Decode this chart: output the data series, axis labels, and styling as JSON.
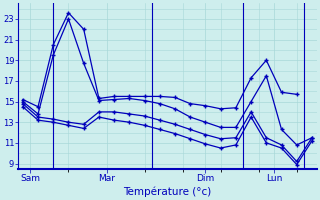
{
  "xlabel": "Température (°c)",
  "bg_color": "#ceeeed",
  "line_color": "#0000bb",
  "grid_color": "#a8d8d8",
  "ylim": [
    8.5,
    24.5
  ],
  "yticks": [
    9,
    11,
    13,
    15,
    17,
    19,
    21,
    23
  ],
  "xlim": [
    -0.3,
    19.3
  ],
  "xtick_labels": [
    "Sam",
    "Mar",
    "Dim",
    "Lun"
  ],
  "xtick_positions": [
    0.5,
    5.5,
    12.0,
    16.5
  ],
  "lines": [
    {
      "x": [
        0,
        1,
        2,
        3,
        4,
        5,
        6,
        7,
        8,
        9,
        10,
        11,
        12,
        13,
        14,
        15,
        16,
        17,
        18
      ],
      "y": [
        15.2,
        14.5,
        20.5,
        23.6,
        22.0,
        15.3,
        15.5,
        15.5,
        15.5,
        15.5,
        15.4,
        14.8,
        14.6,
        14.3,
        14.4,
        17.3,
        19.0,
        15.9,
        15.7
      ]
    },
    {
      "x": [
        0,
        1,
        2,
        3,
        4,
        5,
        6,
        7,
        8,
        9,
        10,
        11,
        12,
        13,
        14,
        15,
        16,
        17,
        18,
        19
      ],
      "y": [
        15.0,
        13.8,
        19.5,
        23.0,
        18.7,
        15.1,
        15.2,
        15.3,
        15.1,
        14.8,
        14.3,
        13.5,
        13.0,
        12.5,
        12.5,
        15.0,
        17.5,
        12.3,
        10.8,
        11.5
      ]
    },
    {
      "x": [
        0,
        1,
        2,
        3,
        4,
        5,
        6,
        7,
        8,
        9,
        10,
        11,
        12,
        13,
        14,
        15,
        16,
        17,
        18,
        19
      ],
      "y": [
        14.8,
        13.5,
        13.3,
        13.0,
        12.8,
        14.0,
        14.0,
        13.8,
        13.6,
        13.2,
        12.8,
        12.3,
        11.8,
        11.4,
        11.5,
        14.0,
        11.5,
        10.8,
        9.2,
        11.5
      ]
    },
    {
      "x": [
        0,
        1,
        2,
        3,
        4,
        5,
        6,
        7,
        8,
        9,
        10,
        11,
        12,
        13,
        14,
        15,
        16,
        17,
        18,
        19
      ],
      "y": [
        14.5,
        13.2,
        13.0,
        12.7,
        12.4,
        13.5,
        13.2,
        13.0,
        12.7,
        12.3,
        11.9,
        11.4,
        10.9,
        10.5,
        10.8,
        13.5,
        11.0,
        10.5,
        8.9,
        11.2
      ]
    }
  ],
  "vlines": [
    2.0,
    8.5,
    14.5,
    18.5
  ]
}
